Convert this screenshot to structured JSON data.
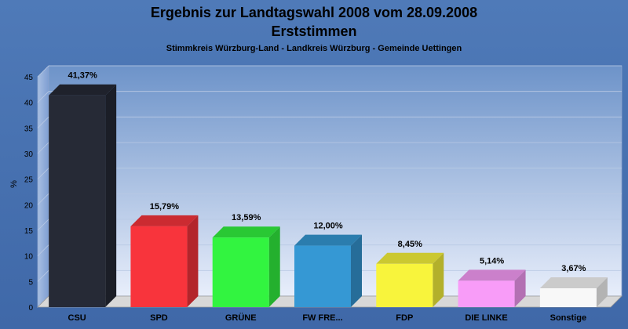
{
  "chart_data": {
    "type": "bar",
    "title": "Ergebnis zur Landtagswahl 2008 vom 28.09.2008",
    "subtitle": "Erststimmen",
    "caption": "Stimmkreis Würzburg-Land - Landkreis Würzburg - Gemeinde Uettingen",
    "ylabel": "%",
    "xlabel": "",
    "ylim": [
      0,
      45
    ],
    "yticks": [
      0,
      5,
      10,
      15,
      20,
      25,
      30,
      35,
      40,
      45
    ],
    "grid": true,
    "categories": [
      "CSU",
      "SPD",
      "GRÜNE",
      "FW FRE...",
      "FDP",
      "DIE LINKE",
      "Sonstige"
    ],
    "values": [
      41.37,
      15.79,
      13.59,
      12.0,
      8.45,
      5.14,
      3.67
    ],
    "value_labels": [
      "41,37%",
      "15,79%",
      "13,59%",
      "12,00%",
      "8,45%",
      "5,14%",
      "3,67%"
    ],
    "colors": [
      "#262a36",
      "#f8343c",
      "#32f440",
      "#3598d4",
      "#f8f43c",
      "#f89cf8",
      "#f8f8f8"
    ]
  }
}
